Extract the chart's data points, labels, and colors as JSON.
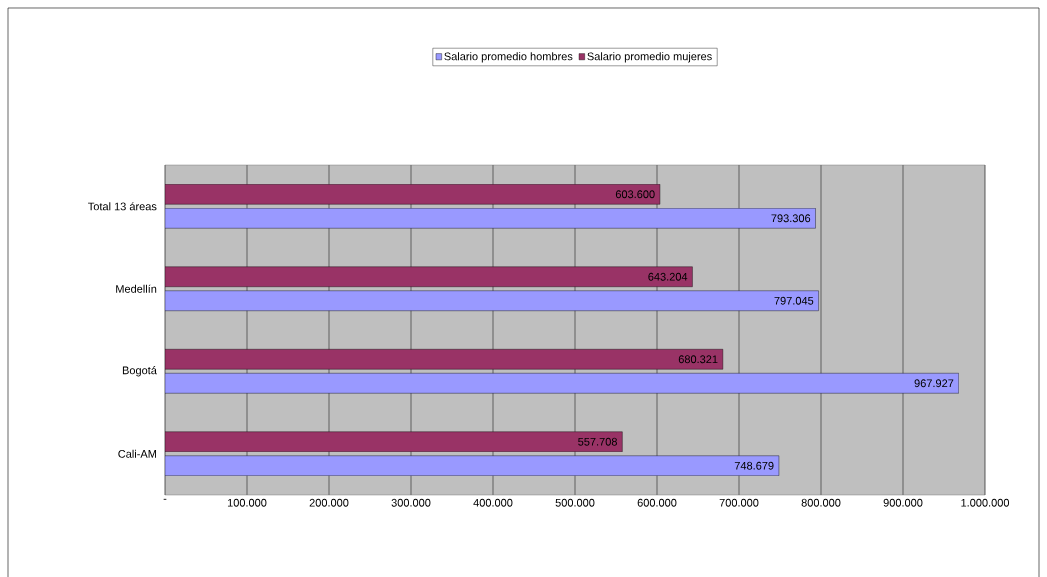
{
  "chart_data": {
    "type": "bar",
    "orientation": "horizontal",
    "categories": [
      "Total 13 áreas",
      "Medellín",
      "Bogotá",
      "Cali-AM"
    ],
    "series": [
      {
        "name": "Salario promedio hombres",
        "color": "#9999ff",
        "values": [
          793306,
          797045,
          967927,
          748679
        ],
        "value_labels": [
          "793.306",
          "797.045",
          "967.927",
          "748.679"
        ]
      },
      {
        "name": "Salario promedio mujeres",
        "color": "#993366",
        "values": [
          603600,
          643204,
          680321,
          557708
        ],
        "value_labels": [
          "603.600",
          "643.204",
          "680.321",
          "557.708"
        ]
      }
    ],
    "xlim": [
      0,
      1000000
    ],
    "xticks": [
      {
        "value": 0,
        "label": "-"
      },
      {
        "value": 100000,
        "label": "100.000"
      },
      {
        "value": 200000,
        "label": "200.000"
      },
      {
        "value": 300000,
        "label": "300.000"
      },
      {
        "value": 400000,
        "label": "400.000"
      },
      {
        "value": 500000,
        "label": "500.000"
      },
      {
        "value": 600000,
        "label": "600.000"
      },
      {
        "value": 700000,
        "label": "700.000"
      },
      {
        "value": 800000,
        "label": "800.000"
      },
      {
        "value": 900000,
        "label": "900.000"
      },
      {
        "value": 1000000,
        "label": "1.000.000"
      }
    ],
    "grid": "x",
    "legend": "top"
  }
}
